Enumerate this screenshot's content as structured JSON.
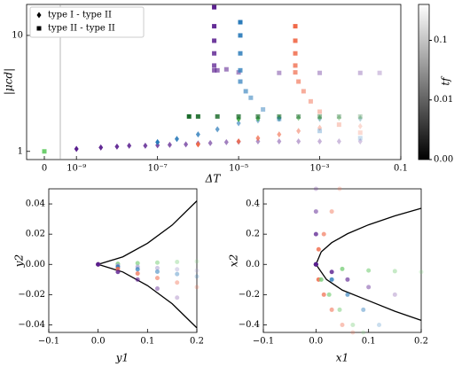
{
  "chart_data": [
    {
      "type": "scatter",
      "xlog": true,
      "ylog": true,
      "fade": true,
      "xlabel": "ΔT",
      "ylabel": "|μcd|",
      "xlim": [
        4e-10,
        0.1
      ],
      "ylim": [
        0.85,
        18.5
      ],
      "xticks": [
        {
          "value": 0,
          "label": "0"
        },
        {
          "value": 1e-09,
          "label": "10⁻⁹"
        },
        {
          "value": 1e-07,
          "label": "10⁻⁷"
        },
        {
          "value": 1e-05,
          "label": "10⁻⁵"
        },
        {
          "value": 0.001,
          "label": "10⁻³"
        },
        0.1
      ],
      "yticks": [
        1,
        10
      ],
      "legend": [
        {
          "label": "type I - type II",
          "marker": "diamond"
        },
        {
          "label": "type II - type II",
          "marker": "square"
        }
      ],
      "legend_position": "upper left",
      "colorbar": {
        "label": "tf",
        "lim": [
          0.001,
          0.4
        ],
        "ticks": [
          0.1,
          0.01,
          0.001
        ]
      },
      "series": [
        {
          "marker": "diamond",
          "color": "#5a1f8f",
          "x": [
            1e-09,
            4e-09,
            1e-08,
            2e-08,
            5e-08,
            1e-07,
            2e-07,
            5e-07,
            1e-06,
            2e-06,
            5e-06,
            1e-05,
            3e-05,
            0.0001,
            0.0003,
            0.001,
            0.003,
            0.01
          ],
          "y": [
            1.05,
            1.08,
            1.1,
            1.12,
            1.12,
            1.13,
            1.14,
            1.15,
            1.17,
            1.18,
            1.2,
            1.21,
            1.22,
            1.22,
            1.22,
            1.22,
            1.22,
            1.22
          ]
        },
        {
          "marker": "diamond",
          "color": "#2b7bba",
          "x": [
            1e-07,
            3e-07,
            1e-06,
            3e-06,
            1e-05,
            3e-05,
            0.0001,
            0.001,
            0.01
          ],
          "y": [
            1.2,
            1.28,
            1.4,
            1.55,
            1.75,
            1.85,
            1.9,
            1.9,
            1.9
          ]
        },
        {
          "marker": "diamond",
          "color": "#f06a4a",
          "x": [
            1e-06,
            1e-05,
            3e-05,
            0.0001,
            0.0003,
            0.001,
            0.01
          ],
          "y": [
            1.15,
            1.22,
            1.3,
            1.4,
            1.5,
            1.6,
            1.65
          ]
        },
        {
          "marker": "diamond",
          "color": "#4caf50",
          "x": [
            1e-05,
            3e-05,
            0.0001,
            0.0003,
            0.001,
            0.003,
            0.01
          ],
          "y": [
            1.9,
            1.92,
            1.95,
            1.95,
            1.95,
            1.95,
            1.95
          ]
        },
        {
          "marker": "square",
          "color": "#1a6b2a",
          "x": [
            6e-07,
            1e-06,
            3e-06,
            1e-05,
            3e-05,
            0.0001,
            0.0003,
            0.001,
            0.003,
            0.01
          ],
          "y": [
            2,
            2,
            2,
            2,
            2,
            2,
            2,
            2,
            2,
            2
          ]
        },
        {
          "marker": "square",
          "color": "#5a1f8f",
          "x": [
            2.5e-06,
            2.5e-06,
            2.5e-06,
            2.5e-06,
            2.5e-06,
            2.5e-06,
            3e-06,
            5e-06,
            1e-05,
            0.0001,
            0.001,
            0.01,
            0.03
          ],
          "y": [
            17.5,
            12,
            9,
            7,
            5.5,
            5,
            5,
            5.1,
            4.8,
            4.75,
            4.75,
            4.75,
            4.75
          ]
        },
        {
          "marker": "square",
          "color": "#2b7bba",
          "x": [
            1.1e-05,
            1.1e-05,
            1.1e-05,
            1.1e-05,
            1.1e-05,
            1.5e-05,
            2e-05,
            4e-05,
            0.0001,
            0.001,
            0.01
          ],
          "y": [
            13,
            10,
            7,
            5,
            4,
            3.3,
            2.9,
            2.3,
            1.9,
            1.5,
            1.3
          ]
        },
        {
          "marker": "square",
          "color": "#f06a4a",
          "x": [
            0.00025,
            0.00025,
            0.00025,
            0.00025,
            0.00025,
            0.0003,
            0.0004,
            0.0006,
            0.001,
            0.003,
            0.01
          ],
          "y": [
            12,
            9,
            7,
            5.5,
            4.8,
            4,
            3.3,
            2.7,
            2.2,
            1.7,
            1.45
          ]
        },
        {
          "marker": "square",
          "color": "#6fcf6f",
          "x": [
            0
          ],
          "y": [
            1
          ]
        }
      ]
    },
    {
      "type": "scatter",
      "fade": true,
      "xlabel": "y1",
      "ylabel": "y2",
      "xlim": [
        -0.1,
        0.2
      ],
      "ylim": [
        -0.045,
        0.05
      ],
      "xticks": [
        {
          "value": -0.1,
          "label": "−0.1"
        },
        {
          "value": 0,
          "label": "0.0"
        },
        0.1,
        0.2
      ],
      "yticks": [
        {
          "value": -0.04,
          "label": "−0.04"
        },
        {
          "value": -0.02,
          "label": "−0.02"
        },
        {
          "value": 0,
          "label": "0.00"
        },
        0.02,
        0.04
      ],
      "curves": [
        {
          "color": "#000000",
          "x": [
            0,
            0.05,
            0.1,
            0.15,
            0.2
          ],
          "y": [
            0,
            0.005,
            0.014,
            0.026,
            0.042
          ]
        },
        {
          "color": "#000000",
          "x": [
            0,
            0.05,
            0.1,
            0.15,
            0.2
          ],
          "y": [
            0,
            -0.005,
            -0.014,
            -0.026,
            -0.042
          ]
        }
      ],
      "series": [
        {
          "marker": "circle",
          "color": "#7fd07f",
          "x": [
            0,
            0.04,
            0.08,
            0.12,
            0.16,
            0.2
          ],
          "y": [
            0,
            0.0004,
            0.0008,
            0.0012,
            0.0016,
            0.002
          ]
        },
        {
          "marker": "circle",
          "color": "#a89fd0",
          "x": [
            0,
            0.04,
            0.08,
            0.12,
            0.16,
            0.2
          ],
          "y": [
            0,
            -0.0008,
            -0.0016,
            -0.0024,
            -0.0032,
            -0.004
          ]
        },
        {
          "marker": "circle",
          "color": "#2b7bba",
          "x": [
            0,
            0.04,
            0.08,
            0.12,
            0.16,
            0.2
          ],
          "y": [
            0,
            -0.0016,
            -0.0032,
            -0.0048,
            -0.0064,
            -0.008
          ]
        },
        {
          "marker": "circle",
          "color": "#f06a4a",
          "x": [
            0,
            0.04,
            0.08,
            0.12,
            0.16,
            0.2
          ],
          "y": [
            0,
            -0.003,
            -0.006,
            -0.009,
            -0.012,
            -0.015
          ]
        },
        {
          "marker": "circle",
          "color": "#5a1f8f",
          "x": [
            0,
            0.04,
            0.08,
            0.12,
            0.16
          ],
          "y": [
            0,
            -0.005,
            -0.01,
            -0.016,
            -0.022
          ]
        }
      ]
    },
    {
      "type": "scatter",
      "fade": true,
      "xlabel": "x1",
      "ylabel": "x2",
      "xlim": [
        -0.1,
        0.2
      ],
      "ylim": [
        -0.45,
        0.5
      ],
      "xticks": [
        {
          "value": -0.1,
          "label": "−0.1"
        },
        {
          "value": 0,
          "label": "0.0"
        },
        0.1,
        0.2
      ],
      "yticks": [
        {
          "value": -0.4,
          "label": "−0.4"
        },
        {
          "value": -0.2,
          "label": "−0.2"
        },
        {
          "value": 0,
          "label": "0.0"
        },
        0.2,
        0.4
      ],
      "curves": [
        {
          "color": "#000000",
          "x": [
            0,
            0.01,
            0.03,
            0.06,
            0.1,
            0.15,
            0.2
          ],
          "y": [
            0,
            0.083,
            0.144,
            0.203,
            0.262,
            0.321,
            0.371
          ]
        },
        {
          "color": "#000000",
          "x": [
            0,
            0.02,
            0.05,
            0.1,
            0.15,
            0.2
          ],
          "y": [
            0,
            -0.1,
            -0.17,
            -0.24,
            -0.31,
            -0.37
          ]
        }
      ],
      "series": [
        {
          "marker": "circle",
          "color": "#f06a4a",
          "x": [
            0,
            0.005,
            0.015,
            0.03,
            0.05,
            0.07
          ],
          "y": [
            0,
            -0.1,
            -0.2,
            -0.3,
            -0.4,
            -0.45
          ]
        },
        {
          "marker": "circle",
          "color": "#f06a4a",
          "x": [
            0,
            0.005,
            0.015,
            0.03,
            0.045
          ],
          "y": [
            0,
            0.1,
            0.2,
            0.35,
            0.5
          ]
        },
        {
          "marker": "circle",
          "color": "#7fd07f",
          "x": [
            0,
            0.01,
            0.025,
            0.045,
            0.07,
            0.09
          ],
          "y": [
            0,
            -0.1,
            -0.2,
            -0.3,
            -0.4,
            -0.45
          ]
        },
        {
          "marker": "circle",
          "color": "#7fd07f",
          "x": [
            0,
            0.05,
            0.1,
            0.15,
            0.2
          ],
          "y": [
            0,
            -0.03,
            -0.04,
            -0.045,
            -0.05
          ]
        },
        {
          "marker": "circle",
          "color": "#2b7bba",
          "x": [
            0,
            0.03,
            0.06,
            0.09,
            0.12
          ],
          "y": [
            0,
            -0.1,
            -0.2,
            -0.3,
            -0.4
          ]
        },
        {
          "marker": "circle",
          "color": "#5a1f8f",
          "x": [
            0,
            0.03,
            0.06,
            0.1,
            0.15
          ],
          "y": [
            0,
            -0.05,
            -0.1,
            -0.15,
            -0.2
          ]
        },
        {
          "marker": "circle",
          "color": "#5a1f8f",
          "x": [
            0,
            0,
            0,
            0
          ],
          "y": [
            0,
            0.2,
            0.35,
            0.5
          ]
        }
      ]
    }
  ]
}
